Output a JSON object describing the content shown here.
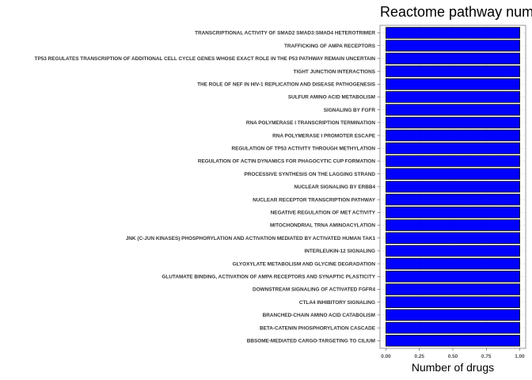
{
  "chart_data": {
    "type": "bar",
    "orientation": "horizontal",
    "title": "Reactome pathway num",
    "xlabel": "Number of drugs",
    "ylabel": "",
    "xlim": [
      0,
      1
    ],
    "xticks": [
      "0.00",
      "0.25",
      "0.50",
      "0.75",
      "1.00"
    ],
    "grid": true,
    "bar_color": "#0000ff",
    "bar_outline": "#000000",
    "categories": [
      "TRANSCRIPTIONAL ACTIVITY OF SMAD2 SMAD3:SMAD4 HETEROTRIMER",
      "TRAFFICKING OF AMPA RECEPTORS",
      "TP53 REGULATES TRANSCRIPTION OF ADDITIONAL CELL CYCLE GENES WHOSE EXACT ROLE IN THE P53 PATHWAY REMAIN UNCERTAIN",
      "TIGHT JUNCTION INTERACTIONS",
      "THE ROLE OF NEF IN HIV-1 REPLICATION AND DISEASE PATHOGENESIS",
      "SULFUR AMINO ACID METABOLISM",
      "SIGNALING BY FGFR",
      "RNA POLYMERASE I TRANSCRIPTION TERMINATION",
      "RNA POLYMERASE I PROMOTER ESCAPE",
      "REGULATION OF TP53 ACTIVITY THROUGH METHYLATION",
      "REGULATION OF ACTIN DYNAMICS FOR PHAGOCYTIC CUP FORMATION",
      "PROCESSIVE SYNTHESIS ON THE LAGGING STRAND",
      "NUCLEAR SIGNALING BY ERBB4",
      "NUCLEAR RECEPTOR TRANSCRIPTION PATHWAY",
      "NEGATIVE REGULATION OF MET ACTIVITY",
      "MITOCHONDRIAL TRNA AMINOACYLATION",
      "JNK (C-JUN KINASES) PHOSPHORYLATION AND ACTIVATION MEDIATED BY ACTIVATED HUMAN TAK1",
      "INTERLEUKIN-12 SIGNALING",
      "GLYOXYLATE METABOLISM AND GLYCINE DEGRADATION",
      "GLUTAMATE BINDING, ACTIVATION OF AMPA RECEPTORS AND SYNAPTIC PLASTICITY",
      "DOWNSTREAM SIGNALING OF ACTIVATED FGFR4",
      "CTLA4 INHIBITORY SIGNALING",
      "BRANCHED-CHAIN AMINO ACID CATABOLISM",
      "BETA-CATENIN PHOSPHORYLATION CASCADE",
      "BBSOME-MEDIATED CARGO-TARGETING TO CILIUM"
    ],
    "values": [
      1,
      1,
      1,
      1,
      1,
      1,
      1,
      1,
      1,
      1,
      1,
      1,
      1,
      1,
      1,
      1,
      1,
      1,
      1,
      1,
      1,
      1,
      1,
      1,
      1
    ]
  }
}
